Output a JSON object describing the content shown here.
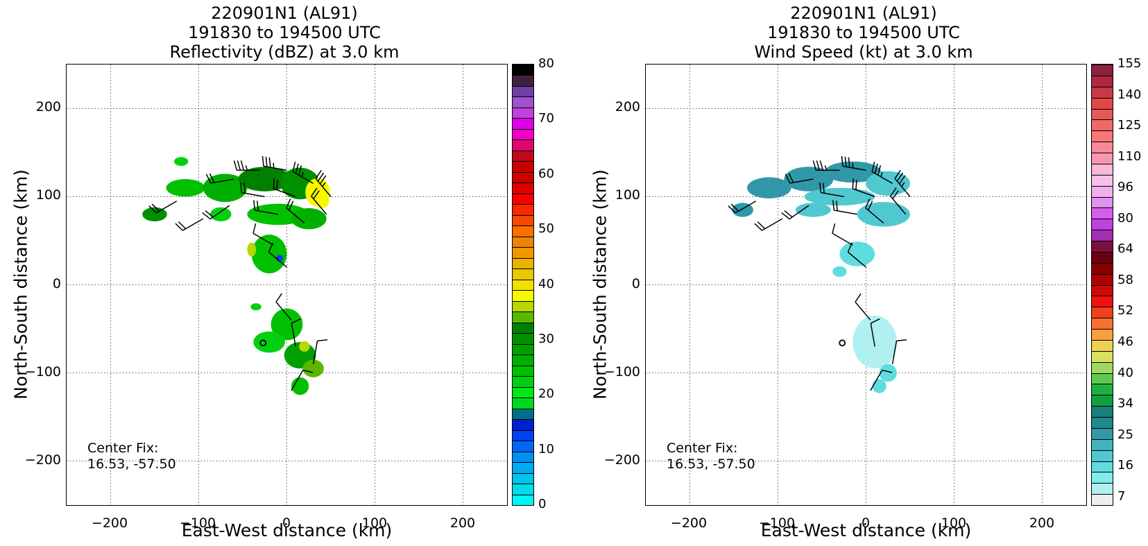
{
  "panels": [
    {
      "id": "reflectivity",
      "title_lines": [
        "220901N1 (AL91)",
        "191830 to 194500 UTC",
        "Reflectivity (dBZ) at 3.0 km"
      ],
      "xlabel": "East-West distance (km)",
      "ylabel": "North-South distance (km)",
      "x_ticks": [
        "−200",
        "−100",
        "0",
        "100",
        "200"
      ],
      "y_ticks": [
        "200",
        "100",
        "0",
        "−100",
        "−200"
      ],
      "center_fix_label": "Center Fix:",
      "center_fix_value": "16.53, -57.50",
      "colorbar": {
        "ticks": [
          "80",
          "70",
          "60",
          "50",
          "40",
          "30",
          "20",
          "10",
          "0"
        ],
        "colors": [
          "#00f5f5",
          "#00dcec",
          "#00c4ec",
          "#00aaf0",
          "#0090f2",
          "#0068f4",
          "#0040ee",
          "#0020d0",
          "#007088",
          "#00d820",
          "#00e818",
          "#00d010",
          "#00c000",
          "#00b000",
          "#00a000",
          "#009000",
          "#008000",
          "#5ab800",
          "#b8d800",
          "#f8f800",
          "#f0e000",
          "#e8c800",
          "#e8b400",
          "#f09800",
          "#f08400",
          "#f87000",
          "#f84800",
          "#f82800",
          "#f80000",
          "#e00000",
          "#d00000",
          "#c80000",
          "#c00818",
          "#e00870",
          "#f000c8",
          "#e000e8",
          "#c040e0",
          "#a050d0",
          "#7040a0",
          "#402040",
          "#000000"
        ]
      }
    },
    {
      "id": "wind_speed",
      "title_lines": [
        "220901N1 (AL91)",
        "191830 to 194500 UTC",
        "Wind Speed (kt) at 3.0 km"
      ],
      "xlabel": "East-West distance (km)",
      "ylabel": "North-South distance (km)",
      "x_ticks": [
        "−200",
        "−100",
        "0",
        "100",
        "200"
      ],
      "y_ticks": [
        "200",
        "100",
        "0",
        "−100",
        "−200"
      ],
      "center_fix_label": "Center Fix:",
      "center_fix_value": "16.53, -57.50",
      "colorbar": {
        "ticks": [
          "155",
          "140",
          "125",
          "110",
          "96",
          "80",
          "64",
          "58",
          "52",
          "46",
          "40",
          "34",
          "25",
          "16",
          "7"
        ],
        "colors": [
          "#eeeeee",
          "#b0f0f0",
          "#80ecec",
          "#60dce0",
          "#50c8d0",
          "#40b4bc",
          "#3098a8",
          "#208890",
          "#188078",
          "#10a040",
          "#20b040",
          "#60c850",
          "#a0d860",
          "#d8e060",
          "#f0d050",
          "#f8a040",
          "#f87030",
          "#f04020",
          "#f01010",
          "#d00808",
          "#b00000",
          "#880000",
          "#6a0010",
          "#781040",
          "#a030b0",
          "#c040e0",
          "#d060e8",
          "#e090f0",
          "#f0b0f0",
          "#f8c0e8",
          "#f8b8d8",
          "#f898b0",
          "#f88898",
          "#f87878",
          "#f06868",
          "#e85858",
          "#e04848",
          "#c83848",
          "#b02840",
          "#902040"
        ]
      }
    }
  ],
  "chart_data": [
    {
      "type": "heatmap",
      "title": "220901N1 (AL91)\n191830 to 194500 UTC\nReflectivity (dBZ) at 3.0 km",
      "xlabel": "East-West distance (km)",
      "ylabel": "North-South distance (km)",
      "xlim": [
        -250,
        250
      ],
      "ylim": [
        -250,
        250
      ],
      "grid": true,
      "colorbar_range": [
        0,
        80
      ],
      "colorbar_units": "dBZ",
      "center_fix": [
        16.53,
        -57.5
      ],
      "center_marker_km": [
        -27,
        -66
      ],
      "echo_regions": [
        {
          "x": -120,
          "y": 140,
          "rx": 8,
          "ry": 5,
          "dbz": 22
        },
        {
          "x": -150,
          "y": 80,
          "rx": 14,
          "ry": 8,
          "dbz": 30
        },
        {
          "x": -115,
          "y": 110,
          "rx": 22,
          "ry": 10,
          "dbz": 25
        },
        {
          "x": -70,
          "y": 110,
          "rx": 25,
          "ry": 16,
          "dbz": 26
        },
        {
          "x": -25,
          "y": 120,
          "rx": 30,
          "ry": 14,
          "dbz": 32
        },
        {
          "x": 15,
          "y": 115,
          "rx": 22,
          "ry": 18,
          "dbz": 30
        },
        {
          "x": 35,
          "y": 105,
          "rx": 14,
          "ry": 16,
          "dbz": 38
        },
        {
          "x": -10,
          "y": 80,
          "rx": 35,
          "ry": 12,
          "dbz": 25
        },
        {
          "x": 25,
          "y": 75,
          "rx": 20,
          "ry": 12,
          "dbz": 26
        },
        {
          "x": -75,
          "y": 80,
          "rx": 12,
          "ry": 8,
          "dbz": 22
        },
        {
          "x": -20,
          "y": 35,
          "rx": 20,
          "ry": 22,
          "dbz": 24
        },
        {
          "x": -8,
          "y": 30,
          "rx": 4,
          "ry": 4,
          "dbz": 12
        },
        {
          "x": -35,
          "y": -25,
          "rx": 6,
          "ry": 4,
          "dbz": 22
        },
        {
          "x": 0,
          "y": -45,
          "rx": 18,
          "ry": 18,
          "dbz": 24
        },
        {
          "x": -20,
          "y": -65,
          "rx": 18,
          "ry": 12,
          "dbz": 23
        },
        {
          "x": 15,
          "y": -80,
          "rx": 18,
          "ry": 15,
          "dbz": 28
        },
        {
          "x": 30,
          "y": -95,
          "rx": 12,
          "ry": 10,
          "dbz": 34
        },
        {
          "x": 15,
          "y": -115,
          "rx": 10,
          "ry": 10,
          "dbz": 24
        },
        {
          "x": -40,
          "y": 40,
          "rx": 5,
          "ry": 8,
          "dbz": 36
        },
        {
          "x": 40,
          "y": 95,
          "rx": 8,
          "ry": 8,
          "dbz": 38
        },
        {
          "x": 20,
          "y": -70,
          "rx": 6,
          "ry": 6,
          "dbz": 36
        }
      ],
      "wind_barbs": [
        {
          "x": -125,
          "y": 95,
          "dir_deg": 240,
          "kt": 20
        },
        {
          "x": -95,
          "y": 75,
          "dir_deg": 240,
          "kt": 20
        },
        {
          "x": -65,
          "y": 90,
          "dir_deg": 235,
          "kt": 20
        },
        {
          "x": -60,
          "y": 120,
          "dir_deg": 260,
          "kt": 20
        },
        {
          "x": -30,
          "y": 130,
          "dir_deg": 270,
          "kt": 25
        },
        {
          "x": 0,
          "y": 130,
          "dir_deg": 280,
          "kt": 25
        },
        {
          "x": 30,
          "y": 115,
          "dir_deg": 300,
          "kt": 25
        },
        {
          "x": 50,
          "y": 100,
          "dir_deg": 320,
          "kt": 25
        },
        {
          "x": -25,
          "y": 100,
          "dir_deg": 280,
          "kt": 20
        },
        {
          "x": 10,
          "y": 100,
          "dir_deg": 290,
          "kt": 20
        },
        {
          "x": 45,
          "y": 80,
          "dir_deg": 320,
          "kt": 20
        },
        {
          "x": 20,
          "y": 70,
          "dir_deg": 310,
          "kt": 20
        },
        {
          "x": -10,
          "y": 80,
          "dir_deg": 280,
          "kt": 20
        },
        {
          "x": -15,
          "y": 45,
          "dir_deg": 300,
          "kt": 10
        },
        {
          "x": 0,
          "y": 20,
          "dir_deg": 310,
          "kt": 10
        },
        {
          "x": 5,
          "y": -40,
          "dir_deg": 320,
          "kt": 10
        },
        {
          "x": 10,
          "y": -70,
          "dir_deg": 350,
          "kt": 10
        },
        {
          "x": 30,
          "y": -90,
          "dir_deg": 10,
          "kt": 10
        },
        {
          "x": 5,
          "y": -120,
          "dir_deg": 30,
          "kt": 10
        }
      ]
    },
    {
      "type": "heatmap",
      "title": "220901N1 (AL91)\n191830 to 194500 UTC\nWind Speed (kt) at 3.0 km",
      "xlabel": "East-West distance (km)",
      "ylabel": "North-South distance (km)",
      "xlim": [
        -250,
        250
      ],
      "ylim": [
        -250,
        250
      ],
      "grid": true,
      "colorbar_range": [
        0,
        160
      ],
      "colorbar_units": "kt",
      "center_fix": [
        16.53,
        -57.5
      ],
      "center_marker_km": [
        -27,
        -66
      ],
      "speed_regions": [
        {
          "x": -140,
          "y": 85,
          "rx": 12,
          "ry": 8,
          "kt": 24
        },
        {
          "x": -110,
          "y": 110,
          "rx": 25,
          "ry": 12,
          "kt": 25
        },
        {
          "x": -65,
          "y": 120,
          "rx": 28,
          "ry": 14,
          "kt": 26
        },
        {
          "x": -15,
          "y": 128,
          "rx": 32,
          "ry": 12,
          "kt": 25
        },
        {
          "x": 25,
          "y": 115,
          "rx": 25,
          "ry": 14,
          "kt": 18
        },
        {
          "x": -30,
          "y": 100,
          "rx": 40,
          "ry": 10,
          "kt": 16
        },
        {
          "x": 20,
          "y": 80,
          "rx": 30,
          "ry": 14,
          "kt": 16
        },
        {
          "x": -60,
          "y": 85,
          "rx": 20,
          "ry": 8,
          "kt": 17
        },
        {
          "x": -10,
          "y": 35,
          "rx": 20,
          "ry": 14,
          "kt": 14
        },
        {
          "x": -30,
          "y": 15,
          "rx": 8,
          "ry": 6,
          "kt": 13
        },
        {
          "x": 10,
          "y": -65,
          "rx": 25,
          "ry": 30,
          "kt": 5
        },
        {
          "x": 25,
          "y": -100,
          "rx": 10,
          "ry": 10,
          "kt": 14
        },
        {
          "x": 15,
          "y": -115,
          "rx": 8,
          "ry": 8,
          "kt": 13
        }
      ]
    }
  ]
}
